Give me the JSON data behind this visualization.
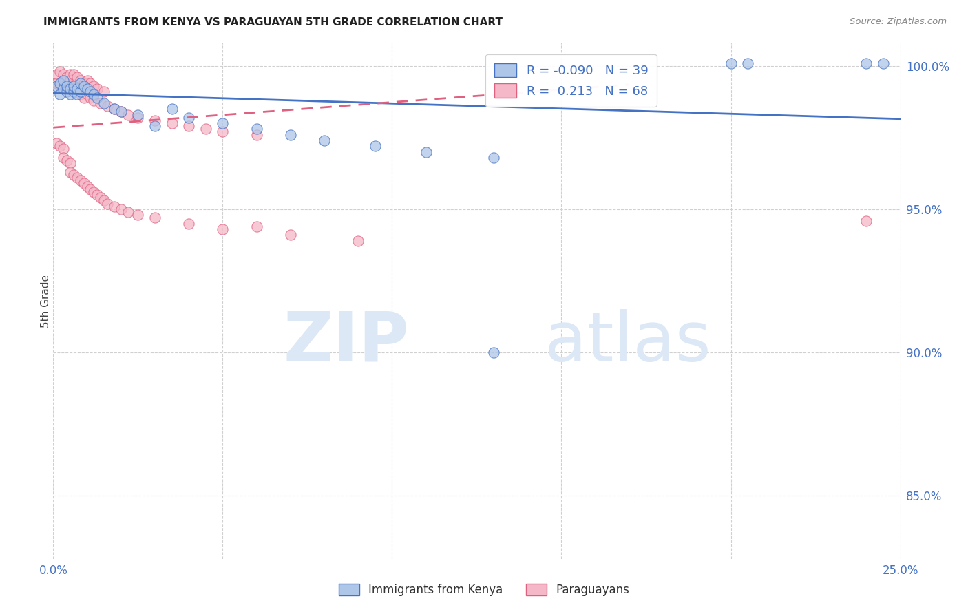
{
  "title": "IMMIGRANTS FROM KENYA VS PARAGUAYAN 5TH GRADE CORRELATION CHART",
  "source": "Source: ZipAtlas.com",
  "ylabel": "5th Grade",
  "xlim": [
    0.0,
    0.25
  ],
  "ylim": [
    0.828,
    1.008
  ],
  "xtick_positions": [
    0.0,
    0.05,
    0.1,
    0.15,
    0.2,
    0.25
  ],
  "xticklabels": [
    "0.0%",
    "",
    "",
    "",
    "",
    "25.0%"
  ],
  "ytick_positions": [
    0.85,
    0.9,
    0.95,
    1.0
  ],
  "yticklabels": [
    "85.0%",
    "90.0%",
    "95.0%",
    "100.0%"
  ],
  "blue_R": -0.09,
  "blue_N": 39,
  "pink_R": 0.213,
  "pink_N": 68,
  "legend_label_blue": "Immigrants from Kenya",
  "legend_label_pink": "Paraguayans",
  "blue_fill": "#aec6e8",
  "blue_edge": "#4472c4",
  "pink_fill": "#f4b8c8",
  "pink_edge": "#e06080",
  "blue_line_color": "#4472c4",
  "pink_line_color": "#e06080",
  "grid_color": "#d0d0d0",
  "tick_color": "#4472c4",
  "watermark_color": "#dce8f5",
  "blue_x": [
    0.001,
    0.002,
    0.002,
    0.003,
    0.003,
    0.004,
    0.004,
    0.005,
    0.005,
    0.006,
    0.006,
    0.007,
    0.007,
    0.008,
    0.008,
    0.009,
    0.01,
    0.011,
    0.012,
    0.013,
    0.015,
    0.018,
    0.02,
    0.025,
    0.03,
    0.035,
    0.04,
    0.05,
    0.06,
    0.07,
    0.08,
    0.095,
    0.11,
    0.13,
    0.2,
    0.205,
    0.24,
    0.245,
    0.13
  ],
  "blue_y": [
    0.993,
    0.99,
    0.994,
    0.992,
    0.995,
    0.991,
    0.993,
    0.99,
    0.992,
    0.991,
    0.993,
    0.99,
    0.992,
    0.991,
    0.994,
    0.993,
    0.992,
    0.991,
    0.99,
    0.989,
    0.987,
    0.985,
    0.984,
    0.983,
    0.979,
    0.985,
    0.982,
    0.98,
    0.978,
    0.976,
    0.974,
    0.972,
    0.97,
    0.968,
    1.001,
    1.001,
    1.001,
    1.001,
    0.9
  ],
  "pink_x": [
    0.001,
    0.001,
    0.002,
    0.002,
    0.003,
    0.003,
    0.004,
    0.004,
    0.005,
    0.005,
    0.005,
    0.006,
    0.006,
    0.007,
    0.007,
    0.008,
    0.008,
    0.009,
    0.009,
    0.01,
    0.01,
    0.011,
    0.011,
    0.012,
    0.012,
    0.013,
    0.014,
    0.015,
    0.016,
    0.018,
    0.02,
    0.022,
    0.025,
    0.03,
    0.035,
    0.04,
    0.045,
    0.05,
    0.06,
    0.001,
    0.002,
    0.003,
    0.003,
    0.004,
    0.005,
    0.005,
    0.006,
    0.007,
    0.008,
    0.009,
    0.01,
    0.011,
    0.012,
    0.013,
    0.014,
    0.015,
    0.016,
    0.018,
    0.02,
    0.022,
    0.025,
    0.03,
    0.04,
    0.05,
    0.07,
    0.09,
    0.24,
    0.06
  ],
  "pink_y": [
    0.997,
    0.994,
    0.998,
    0.993,
    0.997,
    0.992,
    0.996,
    0.991,
    0.997,
    0.993,
    0.995,
    0.997,
    0.992,
    0.996,
    0.991,
    0.995,
    0.99,
    0.994,
    0.989,
    0.995,
    0.99,
    0.994,
    0.989,
    0.993,
    0.988,
    0.992,
    0.987,
    0.991,
    0.986,
    0.985,
    0.984,
    0.983,
    0.982,
    0.981,
    0.98,
    0.979,
    0.978,
    0.977,
    0.976,
    0.973,
    0.972,
    0.971,
    0.968,
    0.967,
    0.966,
    0.963,
    0.962,
    0.961,
    0.96,
    0.959,
    0.958,
    0.957,
    0.956,
    0.955,
    0.954,
    0.953,
    0.952,
    0.951,
    0.95,
    0.949,
    0.948,
    0.947,
    0.945,
    0.943,
    0.941,
    0.939,
    0.946,
    0.944
  ],
  "blue_line_x0": 0.0,
  "blue_line_x1": 0.25,
  "blue_line_y0": 0.9905,
  "blue_line_y1": 0.9815,
  "pink_line_x0": 0.0,
  "pink_line_x1": 0.17,
  "pink_line_y0": 0.9785,
  "pink_line_y1": 0.9935
}
